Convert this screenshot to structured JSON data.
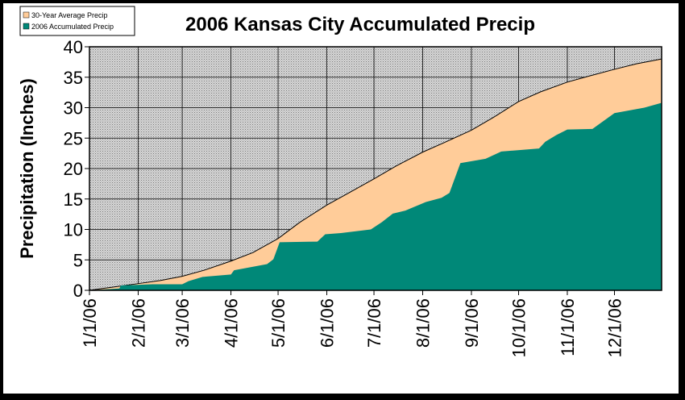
{
  "colors": {
    "average": "#FFCC99",
    "accumulated": "#008878",
    "plot_background": "#C0C0C0",
    "frame": "#000000"
  },
  "chart_data": {
    "type": "area",
    "title": "2006 Kansas City Accumulated Precip",
    "xlabel": "",
    "ylabel": "Precipitation (Inches)",
    "ylim": [
      0,
      40
    ],
    "yticks": [
      0,
      5,
      10,
      15,
      20,
      25,
      30,
      35,
      40
    ],
    "x_range": [
      "2006-01-01",
      "2006-12-31"
    ],
    "x_tick_labels": [
      "1/1/06",
      "2/1/06",
      "3/1/06",
      "4/1/06",
      "5/1/06",
      "6/1/06",
      "7/1/06",
      "8/1/06",
      "9/1/06",
      "10/1/06",
      "11/1/06",
      "12/1/06"
    ],
    "x_tick_dates": [
      "2006-01-01",
      "2006-02-01",
      "2006-03-01",
      "2006-04-01",
      "2006-05-01",
      "2006-06-01",
      "2006-07-01",
      "2006-08-01",
      "2006-09-01",
      "2006-10-01",
      "2006-11-01",
      "2006-12-01"
    ],
    "grid": true,
    "legend_position": "top-left",
    "series": [
      {
        "name": "30-Year Average Precip",
        "color": "#FFCC99",
        "points": [
          [
            "2006-01-01",
            0.0
          ],
          [
            "2006-01-15",
            0.5
          ],
          [
            "2006-02-01",
            1.1
          ],
          [
            "2006-02-15",
            1.6
          ],
          [
            "2006-03-01",
            2.3
          ],
          [
            "2006-03-15",
            3.3
          ],
          [
            "2006-04-01",
            4.8
          ],
          [
            "2006-04-15",
            6.2
          ],
          [
            "2006-05-01",
            8.5
          ],
          [
            "2006-05-15",
            11.2
          ],
          [
            "2006-06-01",
            14.0
          ],
          [
            "2006-06-15",
            16.0
          ],
          [
            "2006-07-01",
            18.3
          ],
          [
            "2006-07-15",
            20.4
          ],
          [
            "2006-08-01",
            22.7
          ],
          [
            "2006-08-15",
            24.3
          ],
          [
            "2006-09-01",
            26.3
          ],
          [
            "2006-09-15",
            28.4
          ],
          [
            "2006-10-01",
            31.0
          ],
          [
            "2006-10-15",
            32.6
          ],
          [
            "2006-11-01",
            34.2
          ],
          [
            "2006-11-15",
            35.2
          ],
          [
            "2006-12-01",
            36.3
          ],
          [
            "2006-12-15",
            37.2
          ],
          [
            "2006-12-31",
            38.0
          ]
        ]
      },
      {
        "name": "2006 Accumulated Precip",
        "color": "#008878",
        "points": [
          [
            "2006-01-01",
            0.0
          ],
          [
            "2006-01-20",
            0.3
          ],
          [
            "2006-01-21",
            0.8
          ],
          [
            "2006-02-10",
            1.0
          ],
          [
            "2006-03-01",
            1.0
          ],
          [
            "2006-03-05",
            1.5
          ],
          [
            "2006-03-14",
            2.2
          ],
          [
            "2006-04-01",
            2.6
          ],
          [
            "2006-04-03",
            3.3
          ],
          [
            "2006-04-24",
            4.3
          ],
          [
            "2006-04-28",
            5.1
          ],
          [
            "2006-05-02",
            7.9
          ],
          [
            "2006-05-26",
            8.0
          ],
          [
            "2006-05-31",
            9.2
          ],
          [
            "2006-06-10",
            9.4
          ],
          [
            "2006-06-29",
            10.0
          ],
          [
            "2006-07-06",
            11.2
          ],
          [
            "2006-07-13",
            12.6
          ],
          [
            "2006-07-21",
            13.1
          ],
          [
            "2006-08-03",
            14.5
          ],
          [
            "2006-08-13",
            15.2
          ],
          [
            "2006-08-18",
            16.0
          ],
          [
            "2006-08-25",
            20.9
          ],
          [
            "2006-09-10",
            21.6
          ],
          [
            "2006-09-20",
            22.8
          ],
          [
            "2006-10-14",
            23.3
          ],
          [
            "2006-10-18",
            24.4
          ],
          [
            "2006-10-25",
            25.5
          ],
          [
            "2006-11-01",
            26.4
          ],
          [
            "2006-11-17",
            26.5
          ],
          [
            "2006-12-01",
            29.1
          ],
          [
            "2006-12-20",
            30.0
          ],
          [
            "2006-12-31",
            30.8
          ]
        ]
      }
    ]
  }
}
